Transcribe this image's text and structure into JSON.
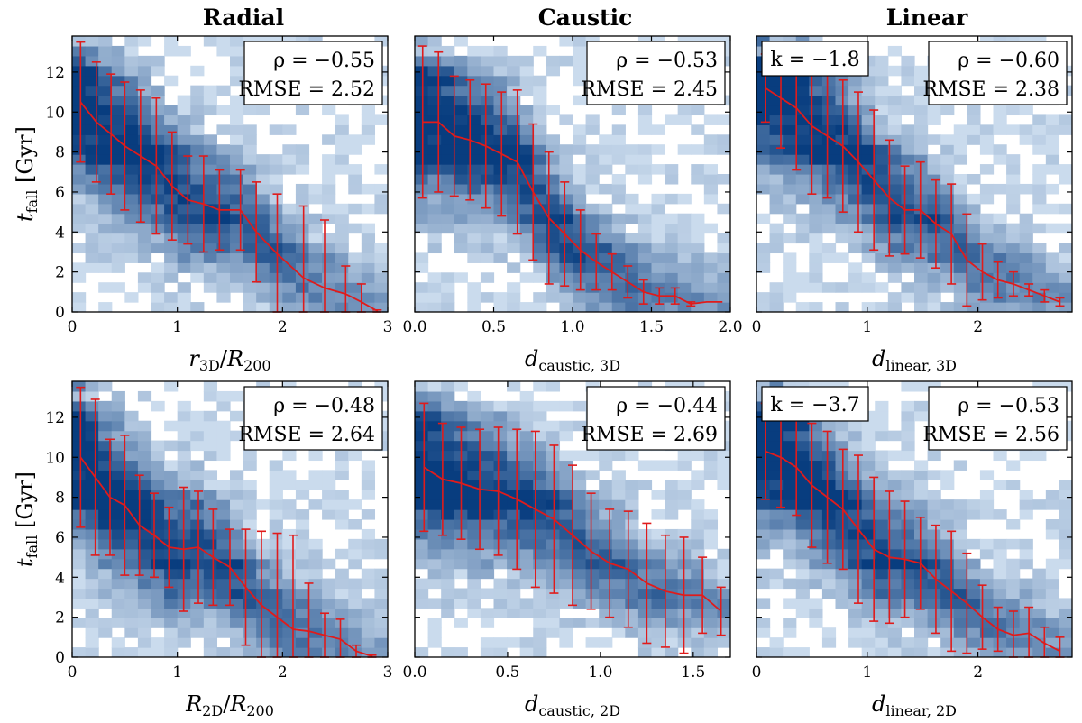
{
  "titles": [
    "Radial",
    "Caustic",
    "Linear"
  ],
  "ylabel": "t_fall [Gyr]",
  "colors": {
    "line": "#e01b1b",
    "cmap_low": "#d3e2f2",
    "cmap_high": "#083d7f"
  },
  "chart_data": [
    {
      "type": "line",
      "row": 0,
      "col": 0,
      "xlabel": "r_3D/R_200",
      "xlim": [
        0,
        3
      ],
      "ylim": [
        0,
        13.8
      ],
      "xticks": [
        "0",
        "1",
        "2",
        "3"
      ],
      "xtick_values": [
        0,
        1,
        2,
        3
      ],
      "yticks": [
        "0",
        "2",
        "4",
        "6",
        "8",
        "10",
        "12"
      ],
      "ytick_values": [
        0,
        2,
        4,
        6,
        8,
        10,
        12
      ],
      "stats": {
        "rho": "ρ = −0.55",
        "rmse": "RMSE = 2.52"
      },
      "hist_shape": "radial",
      "series": [
        {
          "name": "median",
          "x": [
            0.08,
            0.23,
            0.37,
            0.5,
            0.65,
            0.8,
            0.95,
            1.1,
            1.25,
            1.4,
            1.6,
            1.75,
            1.95,
            2.2,
            2.4,
            2.6,
            2.75,
            2.9
          ],
          "y": [
            10.5,
            9.5,
            8.9,
            8.3,
            7.8,
            7.3,
            6.3,
            5.6,
            5.4,
            5.1,
            5.1,
            4.0,
            2.9,
            1.7,
            1.2,
            0.9,
            0.5,
            0.05
          ],
          "err": [
            3.0,
            3.0,
            3.0,
            3.2,
            3.3,
            3.4,
            2.7,
            2.2,
            2.4,
            2.0,
            2.0,
            2.5,
            3.0,
            3.6,
            3.4,
            1.4,
            0.9,
            0.05
          ]
        }
      ]
    },
    {
      "type": "line",
      "row": 0,
      "col": 1,
      "xlabel": "d_caustic,3D",
      "xlim": [
        0,
        2
      ],
      "ylim": [
        0,
        13.8
      ],
      "xticks": [
        "0.0",
        "0.5",
        "1.0",
        "1.5",
        "2.0"
      ],
      "xtick_values": [
        0,
        0.5,
        1,
        1.5,
        2
      ],
      "stats": {
        "rho": "ρ = −0.53",
        "rmse": "RMSE = 2.45"
      },
      "hist_shape": "caustic",
      "series": [
        {
          "name": "median",
          "x": [
            0.05,
            0.15,
            0.25,
            0.35,
            0.45,
            0.55,
            0.65,
            0.75,
            0.85,
            0.95,
            1.05,
            1.15,
            1.25,
            1.35,
            1.45,
            1.55,
            1.65,
            1.75,
            1.85,
            1.95
          ],
          "y": [
            9.5,
            9.5,
            8.8,
            8.6,
            8.3,
            7.9,
            7.5,
            6.0,
            4.7,
            3.9,
            3.1,
            2.5,
            2.0,
            1.5,
            1.0,
            0.8,
            0.8,
            0.4,
            0.5,
            0.5
          ],
          "err": [
            3.8,
            3.5,
            3.0,
            3.0,
            3.1,
            3.1,
            3.6,
            3.4,
            3.3,
            2.6,
            2.0,
            1.4,
            0.9,
            0.8,
            0.6,
            0.4,
            0.4,
            0.1,
            0.0,
            0.0
          ]
        }
      ]
    },
    {
      "type": "line",
      "row": 0,
      "col": 2,
      "xlabel": "d_linear,3D",
      "xlim": [
        0,
        2.85
      ],
      "ylim": [
        0,
        13.8
      ],
      "xticks": [
        "0",
        "1",
        "2"
      ],
      "xtick_values": [
        0,
        1,
        2
      ],
      "stats": {
        "rho": "ρ = −0.60",
        "rmse": "RMSE = 2.38",
        "k": "k = −1.8"
      },
      "hist_shape": "linear",
      "series": [
        {
          "name": "median",
          "x": [
            0.08,
            0.22,
            0.36,
            0.5,
            0.64,
            0.78,
            0.92,
            1.06,
            1.2,
            1.34,
            1.48,
            1.62,
            1.76,
            1.9,
            2.04,
            2.18,
            2.32,
            2.46,
            2.6,
            2.74
          ],
          "y": [
            11.2,
            10.7,
            10.2,
            9.3,
            8.8,
            8.3,
            7.5,
            6.6,
            5.7,
            5.1,
            5.1,
            4.4,
            3.9,
            2.6,
            2.0,
            1.6,
            1.4,
            1.1,
            0.8,
            0.5
          ],
          "err": [
            1.7,
            2.5,
            3.1,
            3.4,
            3.1,
            3.3,
            3.5,
            3.5,
            2.9,
            2.2,
            2.4,
            2.2,
            2.5,
            2.3,
            1.4,
            0.9,
            0.6,
            0.3,
            0.3,
            0.2
          ]
        }
      ]
    },
    {
      "type": "line",
      "row": 1,
      "col": 0,
      "xlabel": "R_2D/R_200",
      "xlim": [
        0,
        3
      ],
      "ylim": [
        0,
        13.8
      ],
      "xticks": [
        "0",
        "1",
        "2",
        "3"
      ],
      "xtick_values": [
        0,
        1,
        2,
        3
      ],
      "yticks": [
        "0",
        "2",
        "4",
        "6",
        "8",
        "10",
        "12"
      ],
      "ytick_values": [
        0,
        2,
        4,
        6,
        8,
        10,
        12
      ],
      "stats": {
        "rho": "ρ = −0.48",
        "rmse": "RMSE = 2.64"
      },
      "hist_shape": "radial",
      "series": [
        {
          "name": "median",
          "x": [
            0.08,
            0.22,
            0.36,
            0.5,
            0.64,
            0.78,
            0.92,
            1.06,
            1.2,
            1.34,
            1.5,
            1.65,
            1.8,
            1.95,
            2.1,
            2.25,
            2.4,
            2.55,
            2.7,
            2.85
          ],
          "y": [
            10.0,
            9.0,
            8.0,
            7.6,
            6.6,
            6.1,
            5.5,
            5.4,
            5.5,
            5.0,
            4.5,
            3.5,
            2.6,
            2.0,
            1.4,
            1.3,
            1.1,
            0.9,
            0.3,
            0.05
          ],
          "err": [
            3.5,
            3.9,
            2.9,
            3.5,
            2.5,
            2.1,
            2.0,
            3.1,
            2.8,
            2.4,
            1.9,
            2.9,
            3.7,
            4.2,
            4.7,
            2.4,
            1.1,
            1.0,
            0.3,
            0.05
          ]
        }
      ]
    },
    {
      "type": "line",
      "row": 1,
      "col": 1,
      "xlabel": "d_caustic,2D",
      "xlim": [
        0,
        1.7
      ],
      "ylim": [
        0,
        13.8
      ],
      "xticks": [
        "0.0",
        "0.5",
        "1.0",
        "1.5"
      ],
      "xtick_values": [
        0,
        0.5,
        1,
        1.5
      ],
      "stats": {
        "rho": "ρ = −0.44",
        "rmse": "RMSE = 2.69"
      },
      "hist_shape": "caustic2",
      "series": [
        {
          "name": "median",
          "x": [
            0.05,
            0.15,
            0.25,
            0.35,
            0.45,
            0.55,
            0.65,
            0.75,
            0.85,
            0.95,
            1.05,
            1.15,
            1.25,
            1.35,
            1.45,
            1.55,
            1.65
          ],
          "y": [
            9.5,
            8.9,
            8.7,
            8.4,
            8.3,
            7.9,
            7.4,
            6.9,
            6.1,
            5.3,
            4.7,
            4.4,
            3.7,
            3.3,
            3.1,
            3.1,
            2.3
          ],
          "err": [
            3.2,
            2.8,
            2.8,
            3.0,
            3.2,
            3.5,
            3.9,
            3.7,
            3.5,
            2.9,
            2.7,
            2.9,
            3.0,
            2.8,
            2.9,
            1.9,
            1.2
          ]
        }
      ]
    },
    {
      "type": "line",
      "row": 1,
      "col": 2,
      "xlabel": "d_linear,2D",
      "xlim": [
        0,
        2.85
      ],
      "ylim": [
        0,
        13.8
      ],
      "xticks": [
        "0",
        "1",
        "2"
      ],
      "xtick_values": [
        0,
        1,
        2
      ],
      "stats": {
        "rho": "ρ = −0.53",
        "rmse": "RMSE = 2.56",
        "k": "k = −3.7"
      },
      "hist_shape": "linear2",
      "series": [
        {
          "name": "median",
          "x": [
            0.08,
            0.22,
            0.36,
            0.5,
            0.64,
            0.78,
            0.92,
            1.06,
            1.2,
            1.34,
            1.48,
            1.62,
            1.76,
            1.9,
            2.04,
            2.18,
            2.32,
            2.46,
            2.6,
            2.74
          ],
          "y": [
            10.3,
            10.0,
            9.5,
            8.6,
            8.0,
            7.4,
            6.4,
            5.4,
            5.0,
            4.9,
            4.7,
            3.9,
            3.3,
            2.7,
            2.0,
            1.4,
            1.1,
            1.2,
            0.7,
            0.3
          ],
          "err": [
            2.4,
            2.5,
            2.4,
            3.1,
            3.3,
            3.0,
            3.7,
            3.6,
            3.3,
            2.9,
            2.3,
            2.7,
            3.0,
            2.5,
            1.6,
            1.1,
            1.2,
            1.3,
            0.8,
            0.7
          ]
        }
      ]
    }
  ]
}
